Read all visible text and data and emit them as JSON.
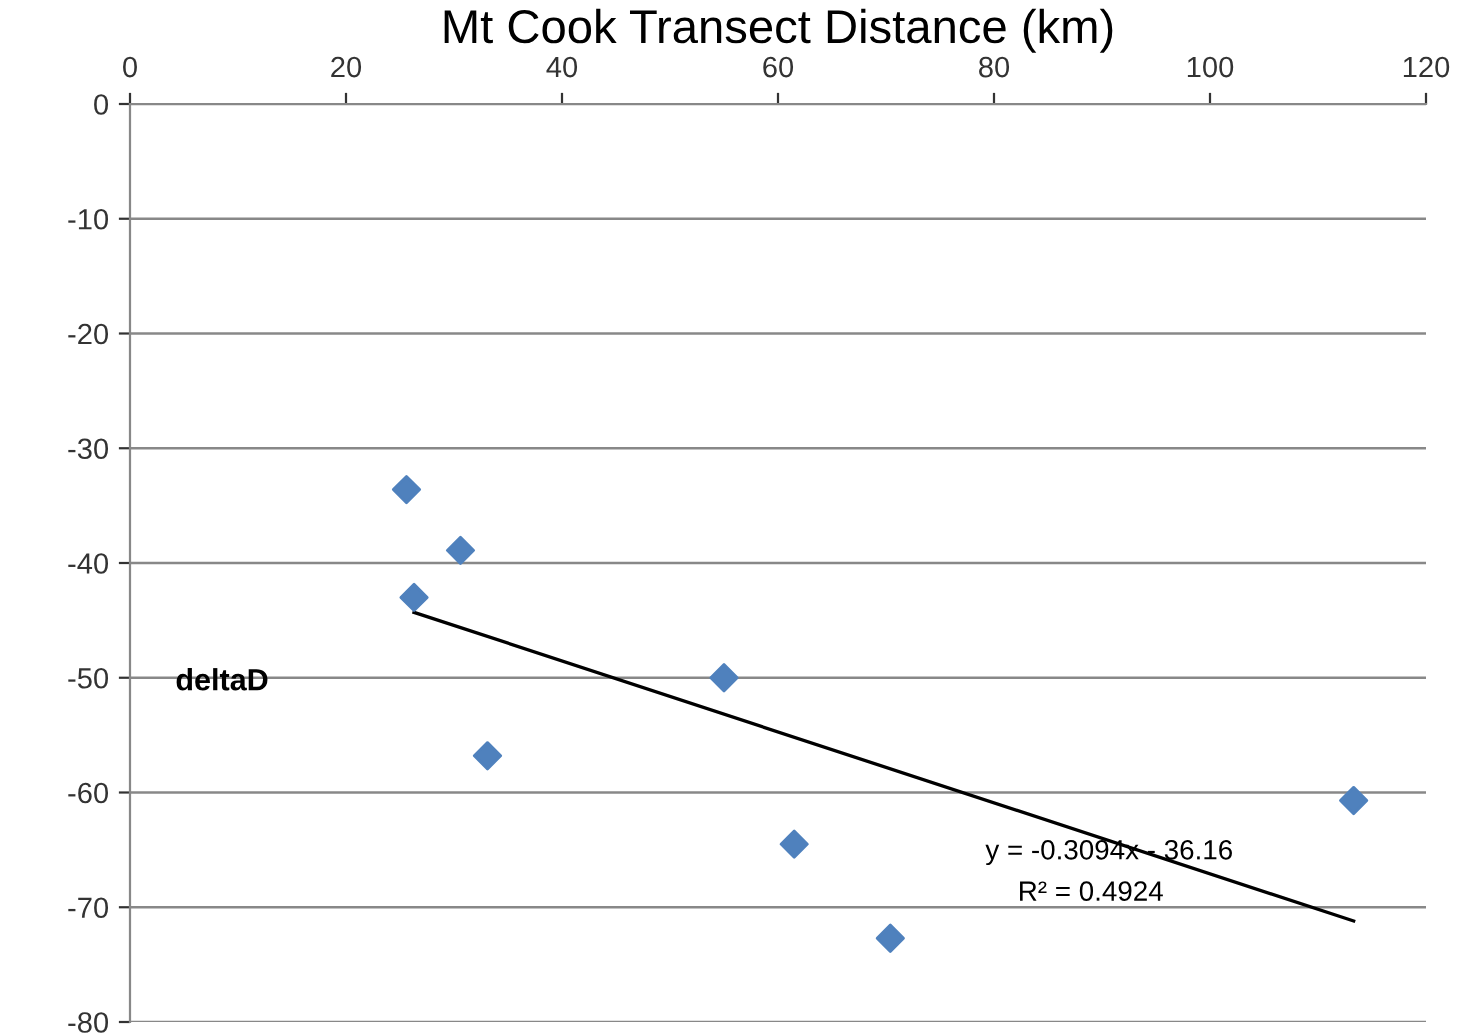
{
  "chart_data": {
    "type": "scatter",
    "title": "Mt Cook Transect Distance (km)",
    "ylabel": "deltaD",
    "series": [
      {
        "color": "#4f81bd",
        "marker": "diamond",
        "x": [
          25.6,
          30.6,
          26.3,
          33.1,
          55.0,
          61.5,
          70.4,
          113.3
        ],
        "values": [
          -33.6,
          -38.9,
          -43.0,
          -56.8,
          -50.0,
          -64.5,
          -72.7,
          -60.7
        ]
      },
      {
        "type": "line",
        "color": "#000000",
        "marker": "none",
        "x": [
          26.3,
          113.3
        ],
        "values": [
          -44.3,
          -71.2
        ]
      }
    ],
    "xlim": [
      0,
      120
    ],
    "xticks": [
      0,
      20,
      40,
      60,
      80,
      100,
      120
    ],
    "ylim": [
      -80,
      0
    ],
    "yticks": [
      -80,
      -70,
      -60,
      -50,
      -40,
      -30,
      -20,
      -10,
      0
    ],
    "grid": "y",
    "legend": false,
    "annotations": [
      "y = -0.3094x - 36.16",
      "R² = 0.4924"
    ]
  }
}
